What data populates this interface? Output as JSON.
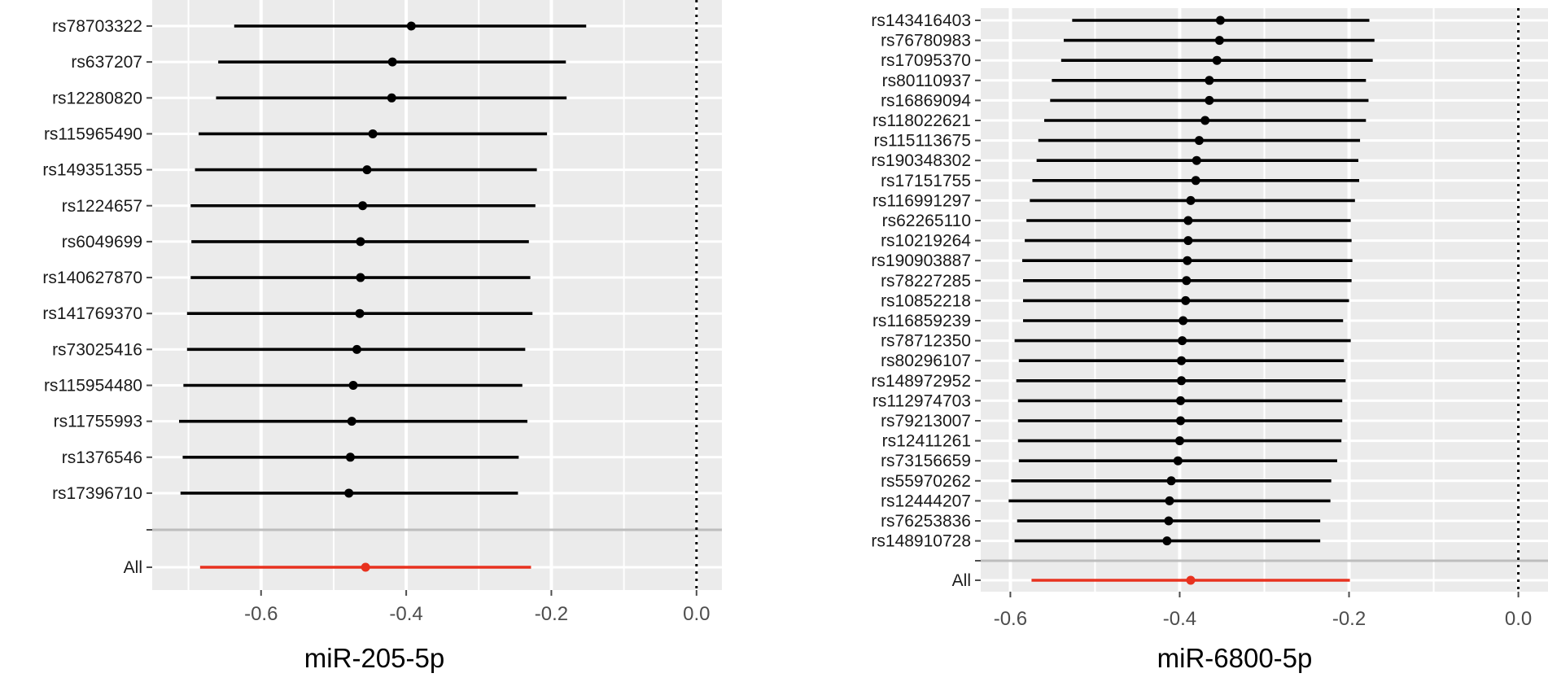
{
  "chart_data": [
    {
      "type": "forest",
      "xlabel": "miR-205-5p",
      "xlim": [
        -0.75,
        0.035
      ],
      "xticks": [
        -0.6,
        -0.4,
        -0.2,
        0.0
      ],
      "xtick_labels": [
        "-0.6",
        "-0.4",
        "-0.2",
        "0.0"
      ],
      "reference_line": 0.0,
      "grid": true,
      "point_color": "#000000",
      "summary_color": "#e8321f",
      "snps": [
        {
          "label": "rs78703322",
          "estimate": -0.393,
          "lower": -0.637,
          "upper": -0.152
        },
        {
          "label": "rs637207",
          "estimate": -0.419,
          "lower": -0.659,
          "upper": -0.18
        },
        {
          "label": "rs12280820",
          "estimate": -0.42,
          "lower": -0.662,
          "upper": -0.179
        },
        {
          "label": "rs115965490",
          "estimate": -0.446,
          "lower": -0.686,
          "upper": -0.206
        },
        {
          "label": "rs149351355",
          "estimate": -0.454,
          "lower": -0.691,
          "upper": -0.22
        },
        {
          "label": "rs1224657",
          "estimate": -0.46,
          "lower": -0.697,
          "upper": -0.222
        },
        {
          "label": "rs6049699",
          "estimate": -0.463,
          "lower": -0.696,
          "upper": -0.231
        },
        {
          "label": "rs140627870",
          "estimate": -0.463,
          "lower": -0.697,
          "upper": -0.229
        },
        {
          "label": "rs141769370",
          "estimate": -0.464,
          "lower": -0.702,
          "upper": -0.226
        },
        {
          "label": "rs73025416",
          "estimate": -0.468,
          "lower": -0.702,
          "upper": -0.236
        },
        {
          "label": "rs115954480",
          "estimate": -0.473,
          "lower": -0.707,
          "upper": -0.24
        },
        {
          "label": "rs11755993",
          "estimate": -0.475,
          "lower": -0.713,
          "upper": -0.233
        },
        {
          "label": "rs1376546",
          "estimate": -0.477,
          "lower": -0.708,
          "upper": -0.245
        },
        {
          "label": "rs17396710",
          "estimate": -0.479,
          "lower": -0.711,
          "upper": -0.246
        }
      ],
      "summary": {
        "label": "All",
        "estimate": -0.456,
        "lower": -0.684,
        "upper": -0.228
      }
    },
    {
      "type": "forest",
      "xlabel": "miR-6800-5p",
      "xlim": [
        -0.635,
        0.035
      ],
      "xticks": [
        -0.6,
        -0.4,
        -0.2,
        0.0
      ],
      "xtick_labels": [
        "-0.6",
        "-0.4",
        "-0.2",
        "0.0"
      ],
      "reference_line": 0.0,
      "grid": true,
      "point_color": "#000000",
      "summary_color": "#e8321f",
      "snps": [
        {
          "label": "rs143416403",
          "estimate": -0.352,
          "lower": -0.527,
          "upper": -0.176
        },
        {
          "label": "rs76780983",
          "estimate": -0.353,
          "lower": -0.537,
          "upper": -0.17
        },
        {
          "label": "rs17095370",
          "estimate": -0.356,
          "lower": -0.54,
          "upper": -0.172
        },
        {
          "label": "rs80110937",
          "estimate": -0.365,
          "lower": -0.551,
          "upper": -0.18
        },
        {
          "label": "rs16869094",
          "estimate": -0.365,
          "lower": -0.553,
          "upper": -0.177
        },
        {
          "label": "rs118022621",
          "estimate": -0.37,
          "lower": -0.56,
          "upper": -0.18
        },
        {
          "label": "rs115113675",
          "estimate": -0.377,
          "lower": -0.567,
          "upper": -0.187
        },
        {
          "label": "rs190348302",
          "estimate": -0.38,
          "lower": -0.569,
          "upper": -0.189
        },
        {
          "label": "rs17151755",
          "estimate": -0.381,
          "lower": -0.574,
          "upper": -0.188
        },
        {
          "label": "rs116991297",
          "estimate": -0.387,
          "lower": -0.577,
          "upper": -0.193
        },
        {
          "label": "rs62265110",
          "estimate": -0.39,
          "lower": -0.581,
          "upper": -0.198
        },
        {
          "label": "rs10219264",
          "estimate": -0.39,
          "lower": -0.583,
          "upper": -0.197
        },
        {
          "label": "rs190903887",
          "estimate": -0.391,
          "lower": -0.586,
          "upper": -0.196
        },
        {
          "label": "rs78227285",
          "estimate": -0.392,
          "lower": -0.585,
          "upper": -0.197
        },
        {
          "label": "rs10852218",
          "estimate": -0.393,
          "lower": -0.585,
          "upper": -0.2
        },
        {
          "label": "rs116859239",
          "estimate": -0.396,
          "lower": -0.585,
          "upper": -0.207
        },
        {
          "label": "rs78712350",
          "estimate": -0.397,
          "lower": -0.595,
          "upper": -0.198
        },
        {
          "label": "rs80296107",
          "estimate": -0.398,
          "lower": -0.59,
          "upper": -0.206
        },
        {
          "label": "rs148972952",
          "estimate": -0.398,
          "lower": -0.593,
          "upper": -0.204
        },
        {
          "label": "rs112974703",
          "estimate": -0.399,
          "lower": -0.591,
          "upper": -0.208
        },
        {
          "label": "rs79213007",
          "estimate": -0.399,
          "lower": -0.591,
          "upper": -0.208
        },
        {
          "label": "rs12411261",
          "estimate": -0.4,
          "lower": -0.591,
          "upper": -0.209
        },
        {
          "label": "rs73156659",
          "estimate": -0.402,
          "lower": -0.59,
          "upper": -0.214
        },
        {
          "label": "rs55970262",
          "estimate": -0.41,
          "lower": -0.599,
          "upper": -0.221
        },
        {
          "label": "rs12444207",
          "estimate": -0.412,
          "lower": -0.602,
          "upper": -0.222
        },
        {
          "label": "rs76253836",
          "estimate": -0.413,
          "lower": -0.592,
          "upper": -0.234
        },
        {
          "label": "rs148910728",
          "estimate": -0.415,
          "lower": -0.595,
          "upper": -0.234
        }
      ],
      "summary": {
        "label": "All",
        "estimate": -0.387,
        "lower": -0.575,
        "upper": -0.199
      }
    }
  ]
}
